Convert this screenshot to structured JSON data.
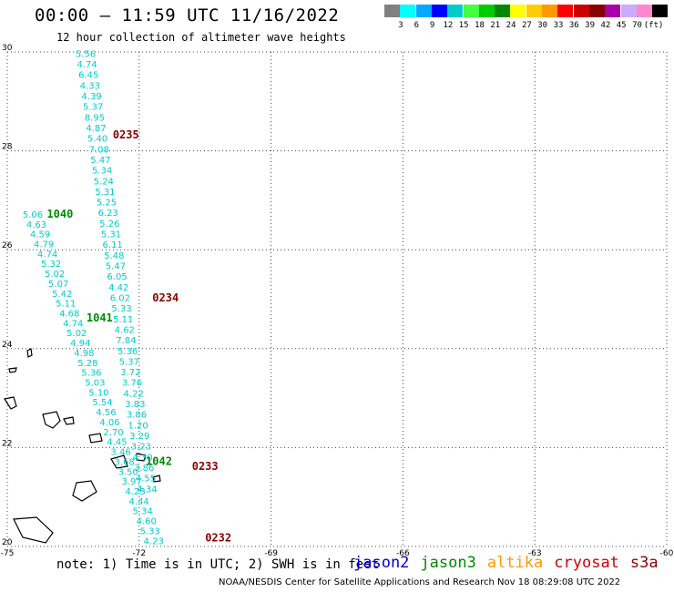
{
  "header": {
    "title": "00:00 — 11:59 UTC 11/16/2022",
    "subtitle": "12 hour collection of altimeter wave heights"
  },
  "color_scale": {
    "colors": [
      "#808080",
      "#00ffff",
      "#00aaff",
      "#0000ff",
      "#00cccc",
      "#44ff44",
      "#00cc00",
      "#008800",
      "#ffff00",
      "#ffcc00",
      "#ff9900",
      "#ff0000",
      "#cc0000",
      "#880000",
      "#aa00aa",
      "#ccaaff",
      "#ff88cc",
      "#000000"
    ],
    "labels": [
      "3",
      "6",
      "9",
      "12",
      "15",
      "18",
      "21",
      "24",
      "27",
      "30",
      "33",
      "36",
      "39",
      "42",
      "45",
      "70",
      "(ft)"
    ]
  },
  "chart_data": {
    "type": "scatter",
    "title": "12 hour collection of altimeter wave heights",
    "xlim": [
      -75,
      -60
    ],
    "ylim": [
      20,
      30
    ],
    "x_ticks": [
      "-75",
      "-72",
      "-69",
      "-66",
      "-63",
      "-60"
    ],
    "y_ticks": [
      "30",
      "28",
      "26",
      "24",
      "22",
      "20"
    ],
    "grid": true,
    "points_color": "#00cccc",
    "tracks": [
      {
        "label": "0235",
        "label_color": "#880000",
        "label_lon": -72.6,
        "label_lat": 28.25,
        "lon_start": -73.45,
        "lon_end": -72.05,
        "lat_start": 29.9,
        "lat_end": 21.1,
        "values": [
          "5.56",
          "4.74",
          "6.45",
          "4.33",
          "4.39",
          "5.37",
          "8.95",
          "4.87",
          "5.40",
          "7.08",
          "5.47",
          "5.34",
          "5.24",
          "5.31",
          "5.25",
          "6.23",
          "5.26",
          "5.31",
          "6.11",
          "5.48",
          "5.47",
          "6.05",
          "4.42",
          "6.02",
          "5.33",
          "5.11",
          "4.62",
          "7.84",
          "5.36",
          "5.37",
          "3.72",
          "3.76",
          "4.22",
          "3.83",
          "3.86",
          "1.20",
          "3.29",
          "3.23",
          "4.30",
          "3.86",
          "4.55",
          "4.34"
        ]
      },
      {
        "label": "1040",
        "label_color": "#008800",
        "label_lon": -74.1,
        "label_lat": 26.65,
        "lon_start": -74.65,
        "lon_end": -71.9,
        "lat_start": 26.65,
        "lat_end": 20.05,
        "values": [
          "5.06",
          "4.63",
          "4.59",
          "4.79",
          "4.74",
          "5.32",
          "5.02",
          "5.07",
          "5.42",
          "5.11",
          "4.68",
          "4.74",
          "5.02",
          "4.94",
          "4.98",
          "5.28",
          "5.36",
          "5.03",
          "5.10",
          "5.54",
          "4.56",
          "4.06",
          "2.70",
          "4.45",
          "3.46",
          "3.68",
          "3.50",
          "3.97",
          "4.23",
          "4.44",
          "5.34",
          "4.60",
          "5.33",
          "4.23"
        ]
      },
      {
        "label": "1041",
        "label_color": "#008800",
        "label_lon": -73.2,
        "label_lat": 24.55,
        "lon_start": 0,
        "lon_end": 0,
        "lat_start": 0,
        "lat_end": 0,
        "values": []
      },
      {
        "label": "0234",
        "label_color": "#880000",
        "label_lon": -71.7,
        "label_lat": 24.95,
        "lon_start": 0,
        "lon_end": 0,
        "lat_start": 0,
        "lat_end": 0,
        "values": []
      },
      {
        "label": "1042",
        "label_color": "#008800",
        "label_lon": -71.85,
        "label_lat": 21.65,
        "lon_start": 0,
        "lon_end": 0,
        "lat_start": 0,
        "lat_end": 0,
        "values": []
      },
      {
        "label": "0233",
        "label_color": "#880000",
        "label_lon": -70.8,
        "label_lat": 21.55,
        "lon_start": 0,
        "lon_end": 0,
        "lat_start": 0,
        "lat_end": 0,
        "values": []
      },
      {
        "label": "0232",
        "label_color": "#880000",
        "label_lon": -70.5,
        "label_lat": 20.1,
        "lon_start": 0,
        "lon_end": 0,
        "lat_start": 0,
        "lat_end": 0,
        "values": []
      }
    ]
  },
  "note": "note: 1) Time is in UTC; 2) SWH is in feet",
  "legend": {
    "items": [
      {
        "name": "jason2",
        "color": "#0000cc"
      },
      {
        "name": "jason3",
        "color": "#008800"
      },
      {
        "name": "altika",
        "color": "#ff9900"
      },
      {
        "name": "cryosat",
        "color": "#cc0000"
      },
      {
        "name": "s3a",
        "color": "#880000"
      }
    ]
  },
  "footer": "NOAA/NESDIS Center for Satellite Applications and Research    Nov 18 08:29:08 UTC 2022"
}
